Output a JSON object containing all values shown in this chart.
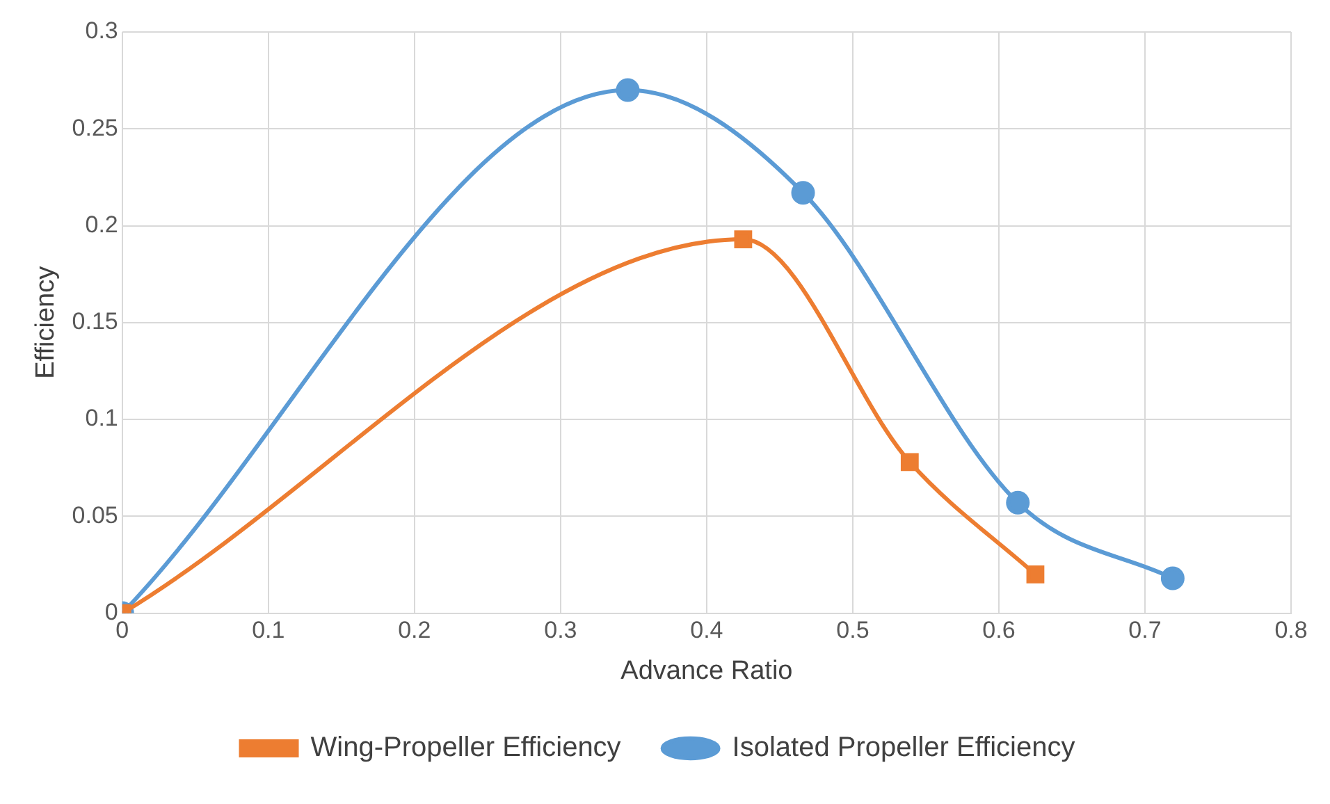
{
  "chart_data": {
    "type": "line",
    "xlabel": "Advance Ratio",
    "ylabel": "Efficiency",
    "xlim": [
      0,
      0.8
    ],
    "xticks": [
      0,
      0.1,
      0.2,
      0.3,
      0.4,
      0.5,
      0.6,
      0.7,
      0.8
    ],
    "ylim": [
      0,
      0.3
    ],
    "yticks": [
      0,
      0.05,
      0.1,
      0.15,
      0.2,
      0.25,
      0.3
    ],
    "grid": true,
    "legend": "bottom",
    "series": [
      {
        "name": "Wing-Propeller Efficiency",
        "color": "#ed7d31",
        "marker": "square",
        "x": [
          0,
          0.425,
          0.539,
          0.625
        ],
        "values": [
          0,
          0.193,
          0.078,
          0.02
        ]
      },
      {
        "name": "Isolated Propeller Efficiency",
        "color": "#5b9bd5",
        "marker": "circle",
        "x": [
          0,
          0.346,
          0.466,
          0.613,
          0.719
        ],
        "values": [
          0,
          0.27,
          0.217,
          0.057,
          0.018
        ]
      }
    ]
  }
}
